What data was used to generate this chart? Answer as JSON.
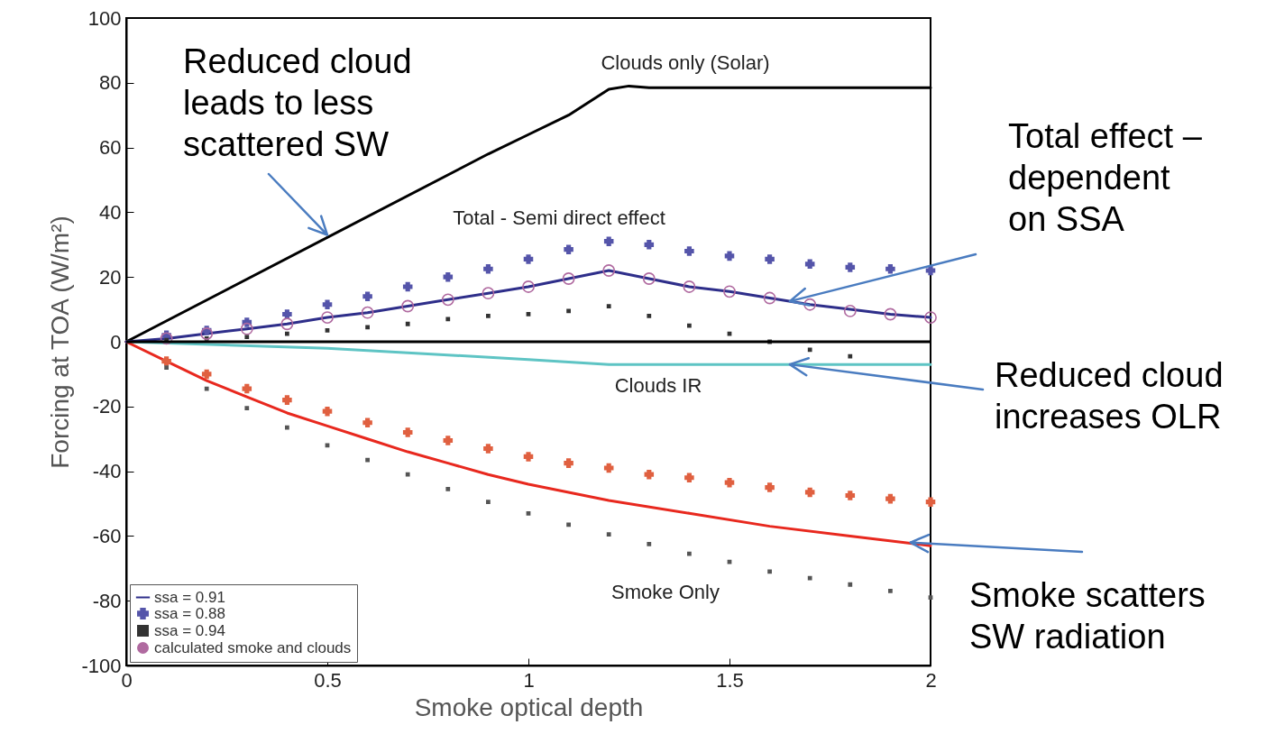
{
  "chart_data": {
    "type": "scatter",
    "xlabel": "Smoke optical depth",
    "ylabel": "Forcing at TOA (W/m²)",
    "xlim": [
      0,
      2
    ],
    "xticks": [
      0,
      0.5,
      1,
      1.5,
      2
    ],
    "ylim": [
      -100,
      100
    ],
    "yticks": [
      -100,
      -80,
      -60,
      -40,
      -20,
      0,
      20,
      40,
      60,
      80,
      100
    ],
    "grid": false,
    "legend": "bottom left",
    "x": [
      0.1,
      0.2,
      0.3,
      0.4,
      0.5,
      0.6,
      0.7,
      0.8,
      0.9,
      1,
      1.1,
      1.2,
      1.3,
      1.4,
      1.5,
      1.6,
      1.7,
      1.8,
      1.9,
      2
    ],
    "series": [
      {
        "type": "line",
        "color": "#000000",
        "x": [
          0,
          0.9,
          1,
          1.1,
          1.2,
          1.25,
          1.3,
          2
        ],
        "values": [
          0,
          58,
          64,
          70,
          78,
          79,
          78.5,
          78.5
        ]
      },
      {
        "type": "line",
        "color": "#5ec4c4",
        "x": [
          0,
          0.5,
          1,
          1.2,
          1.3,
          2
        ],
        "values": [
          0,
          -2,
          -5.5,
          -7,
          -7,
          -7
        ]
      },
      {
        "type": "line",
        "color": "#e8281e",
        "x": [
          0,
          0.1,
          0.2,
          0.3,
          0.4,
          0.5,
          0.6,
          0.7,
          0.8,
          0.9,
          1,
          1.2,
          1.4,
          1.6,
          1.8,
          2
        ],
        "values": [
          0,
          -6,
          -12,
          -17,
          -22,
          -26,
          -30,
          -34,
          -37.5,
          -41,
          -44,
          -49,
          -53,
          -57,
          -60,
          -63
        ]
      },
      {
        "marker": "cross",
        "color": "#e06040",
        "values": [
          -6,
          -10,
          -14.5,
          -18,
          -21.5,
          -25,
          -28,
          -30.5,
          -33,
          -35.5,
          -37.5,
          -39,
          -41,
          -42,
          -43.5,
          -45,
          -46.5,
          -47.5,
          -48.5,
          -49.5
        ]
      },
      {
        "marker": "square",
        "color": "#555555",
        "values": [
          -8,
          -14.5,
          -20.5,
          -26.5,
          -32,
          -36.5,
          -41,
          -45.5,
          -49.5,
          -53,
          -56.5,
          -59.5,
          -62.5,
          -65.5,
          -68,
          -71,
          -73,
          -75,
          -77,
          -79
        ]
      },
      {
        "type": "line",
        "name": "ssa = 0.91",
        "color": "#2e2e8a",
        "x": [
          0,
          0.1,
          0.2,
          0.3,
          0.4,
          0.5,
          0.6,
          0.7,
          0.8,
          0.9,
          1,
          1.1,
          1.2,
          1.3,
          1.4,
          1.5,
          1.6,
          1.7,
          1.8,
          1.9,
          2
        ],
        "values": [
          0,
          1,
          2.5,
          4,
          5.5,
          7.5,
          9,
          11,
          13,
          15,
          17,
          19.5,
          22,
          19.5,
          17,
          15.5,
          13.5,
          11.5,
          10,
          8.5,
          7.5
        ]
      },
      {
        "name": "ssa = 0.88",
        "marker": "cross",
        "color": "#5555aa",
        "values": [
          2,
          3.5,
          6,
          8.5,
          11.5,
          14,
          17,
          20,
          22.5,
          25.5,
          28.5,
          31,
          30,
          28,
          26.5,
          25.5,
          24,
          23,
          22.5,
          22
        ]
      },
      {
        "name": "ssa = 0.94",
        "marker": "square",
        "color": "#333333",
        "values": [
          0.5,
          1,
          1.5,
          2.5,
          3.5,
          4.5,
          5.5,
          7,
          8,
          8.5,
          9.5,
          11,
          8,
          5,
          2.5,
          0,
          -2.5,
          -4.5,
          null,
          null
        ]
      },
      {
        "name": "calculated smoke and clouds",
        "marker": "circle",
        "color": "#b06aa0",
        "values": [
          1,
          2.5,
          4,
          5.5,
          7.5,
          9,
          11,
          13,
          15,
          17,
          19.5,
          22,
          19.5,
          17,
          15.5,
          13.5,
          11.5,
          9.5,
          8.5,
          7.5
        ]
      }
    ],
    "ref_lines": [
      {
        "axis": "y",
        "value": 0,
        "color": "#000000"
      }
    ],
    "annotations": [
      {
        "text": "Reduced cloud leads to less scattered SW",
        "x": 0.5,
        "y": 33
      },
      "Clouds only (Solar)",
      "Total - Semi direct effect",
      {
        "text": "Total effect – dependent on SSA",
        "x": 1.65,
        "y": 12.5
      },
      "Clouds IR",
      {
        "text": "Reduced cloud increases OLR",
        "x": 1.65,
        "y": -7
      },
      "Smoke Only",
      {
        "text": "Smoke scatters SW radiation",
        "x": 1.95,
        "y": -62
      }
    ]
  }
}
